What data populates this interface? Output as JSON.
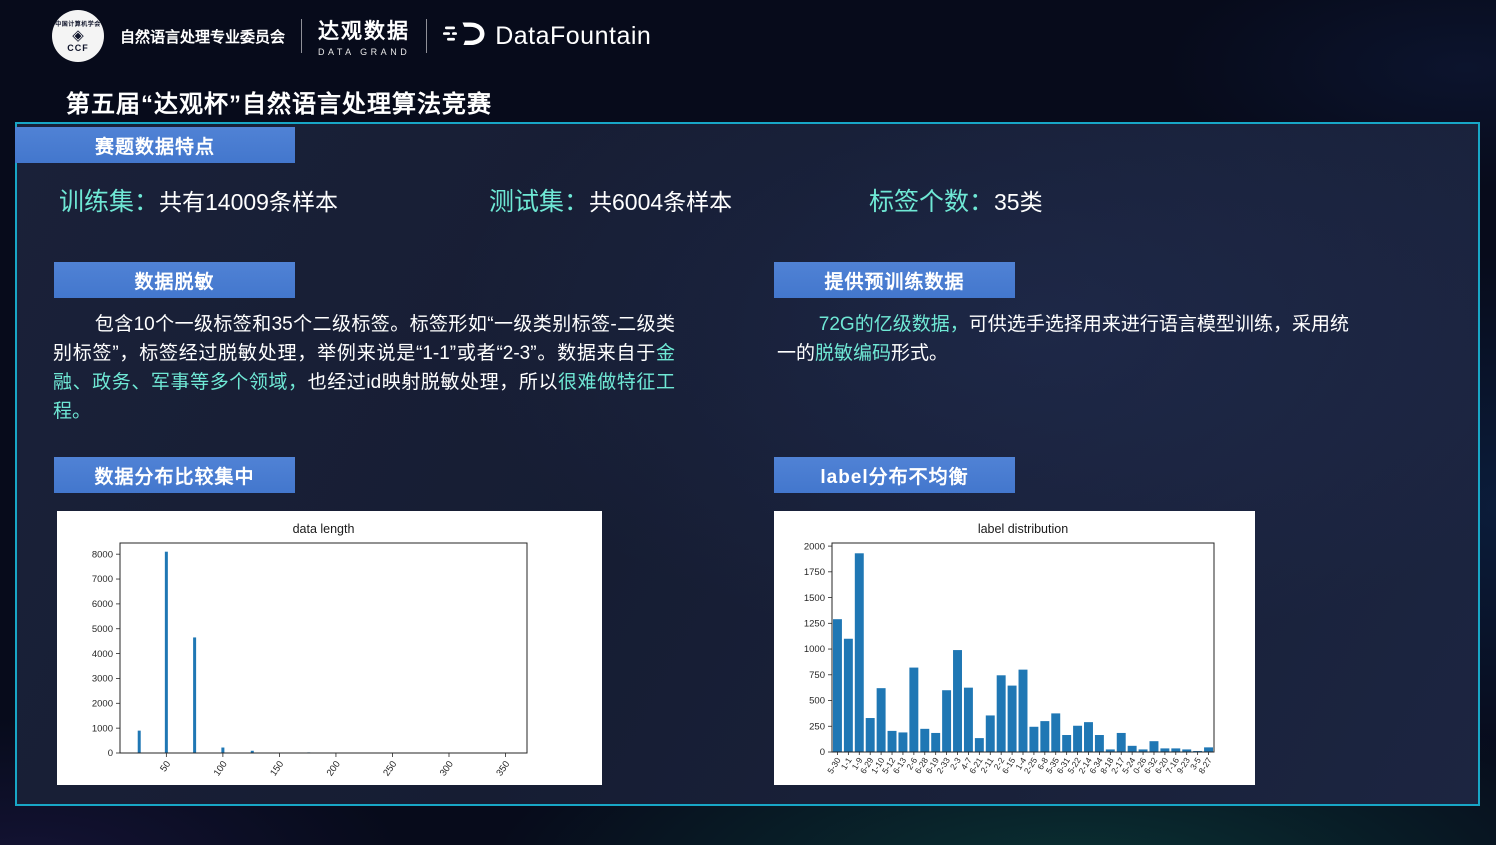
{
  "header": {
    "ccf_circle_top": "中国计算机学会",
    "ccf_abbr": "CCF",
    "committee": "自然语言处理专业委员会",
    "datagrand_name": "达观数据",
    "datagrand_sub": "DATA GRAND",
    "datafountain_name": "DataFountain"
  },
  "title": "第五届“达观杯”自然语言处理算法竞赛",
  "section_badge": "赛题数据特点",
  "colors": {
    "accent_blue": "#4a7dd1",
    "accent_cyan": "#6fe8d5",
    "panel_border": "#18a6c6",
    "bar_blue": "#1f77b4"
  },
  "stats": [
    {
      "label": "训练集：",
      "value": "共有14009条样本"
    },
    {
      "label": "测试集：",
      "value": "共6004条样本"
    },
    {
      "label": "标签个数：",
      "value": "35类"
    }
  ],
  "desensitization": {
    "badge": "数据脱敏",
    "segments": [
      {
        "text": "包含10个一级标签和35个二级标签。标签形如“一级类别标签-二级类别标签”，标签经过脱敏处理，举例来说是“1-1”或者“2-3”。数据来自于",
        "color": "white"
      },
      {
        "text": "金融、政务、军事等多个领域，",
        "color": "cyan"
      },
      {
        "text": "也经过id映射脱敏处理，所以",
        "color": "white"
      },
      {
        "text": "很难做特征工程。",
        "color": "cyan"
      }
    ]
  },
  "pretrain": {
    "badge": "提供预训练数据",
    "segments": [
      {
        "text": "72G的亿级数据，",
        "color": "cyan"
      },
      {
        "text": "可供选手选择用来进行语言模型训练，采用统一的",
        "color": "white"
      },
      {
        "text": "脱敏编码",
        "color": "cyan"
      },
      {
        "text": "形式。",
        "color": "white"
      }
    ]
  },
  "distribution_badge": "数据分布比较集中",
  "label_badge": "label分布不均衡",
  "chart_data": [
    {
      "type": "bar",
      "title": "data length",
      "x": [
        26,
        50,
        75,
        100,
        126,
        176
      ],
      "values": [
        900,
        8100,
        4650,
        220,
        90,
        25
      ],
      "xticks": [
        50,
        100,
        150,
        200,
        250,
        300,
        350
      ],
      "yticks": [
        0,
        1000,
        2000,
        3000,
        4000,
        5000,
        6000,
        7000,
        8000
      ],
      "xlim": [
        9,
        369
      ],
      "ylim": [
        0,
        8450
      ],
      "xlabel": "",
      "ylabel": "",
      "grid": false,
      "legend_position": "none",
      "bar_color": "#1f77b4"
    },
    {
      "type": "bar",
      "title": "label distribution",
      "categories": [
        "5-30",
        "1-1",
        "1-9",
        "6-29",
        "1-10",
        "5-12",
        "6-13",
        "2-6",
        "6-28",
        "6-19",
        "2-33",
        "2-3",
        "4-7",
        "6-21",
        "2-11",
        "2-2",
        "6-15",
        "1-4",
        "2-25",
        "6-8",
        "5-35",
        "6-31",
        "5-22",
        "2-14",
        "6-34",
        "8-18",
        "2-17",
        "5-24",
        "0-26",
        "6-32",
        "6-20",
        "7-16",
        "9-23",
        "3-5",
        "8-27"
      ],
      "values": [
        1290,
        1100,
        1930,
        330,
        620,
        205,
        190,
        820,
        225,
        185,
        600,
        990,
        625,
        135,
        355,
        745,
        645,
        800,
        245,
        300,
        375,
        165,
        255,
        290,
        165,
        25,
        185,
        60,
        25,
        105,
        35,
        35,
        25,
        10,
        45
      ],
      "yticks": [
        0,
        250,
        500,
        750,
        1000,
        1250,
        1500,
        1750,
        2000
      ],
      "ylim": [
        0,
        2030
      ],
      "xlabel": "",
      "ylabel": "",
      "grid": false,
      "legend_position": "none",
      "bar_color": "#1f77b4"
    }
  ]
}
